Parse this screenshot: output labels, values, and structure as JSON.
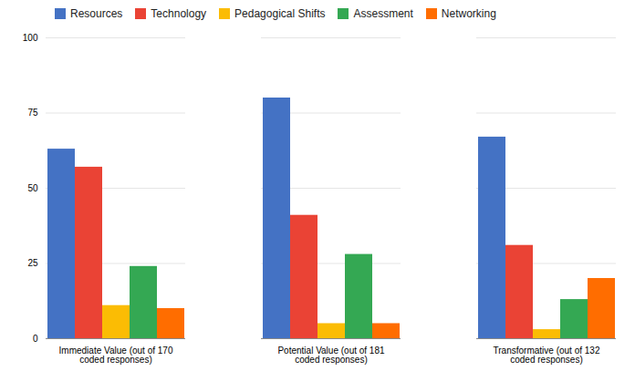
{
  "chart_data": {
    "type": "bar",
    "categories": [
      "Immediate Value (out of 170\ncoded responses)",
      "Potential Value (out of 181\ncoded responses)",
      "Transformative (out of 132\ncoded responses)"
    ],
    "series": [
      {
        "name": "Resources",
        "color": "#4472C4",
        "values": [
          63,
          80,
          67
        ]
      },
      {
        "name": "Technology",
        "color": "#EA4335",
        "values": [
          57,
          41,
          31
        ]
      },
      {
        "name": "Pedagogical Shifts",
        "color": "#FBBC04",
        "values": [
          11,
          5,
          3
        ]
      },
      {
        "name": "Assessment",
        "color": "#34A853",
        "values": [
          24,
          28,
          13
        ]
      },
      {
        "name": "Networking",
        "color": "#FF6D00",
        "values": [
          10,
          5,
          20
        ]
      }
    ],
    "ylim": [
      0,
      100
    ],
    "yticks": [
      0,
      25,
      50,
      75,
      100
    ],
    "grid": true,
    "legend": "top"
  }
}
